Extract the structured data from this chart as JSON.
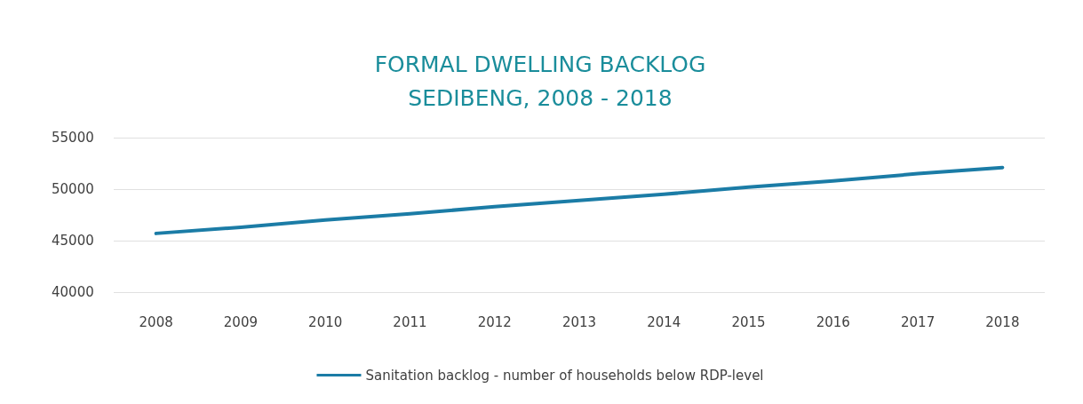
{
  "chart_data": {
    "type": "line",
    "title": "FORMAL DWELLING BACKLOG\nSEDIBENG, 2008 - 2018",
    "categories": [
      "2008",
      "2009",
      "2010",
      "2011",
      "2012",
      "2013",
      "2014",
      "2015",
      "2016",
      "2017",
      "2018"
    ],
    "series": [
      {
        "name": "Sanitation backlog - number of households below RDP-level",
        "color": "#1b7ca6",
        "values": [
          45700,
          46300,
          47000,
          47600,
          48300,
          48900,
          49500,
          50200,
          50800,
          51500,
          52100
        ]
      }
    ],
    "ylim": [
      40000,
      55000
    ],
    "yticks": [
      40000,
      45000,
      50000,
      55000
    ],
    "grid": "y",
    "legend": "bottom",
    "marker": "none",
    "line_style": "solid"
  }
}
